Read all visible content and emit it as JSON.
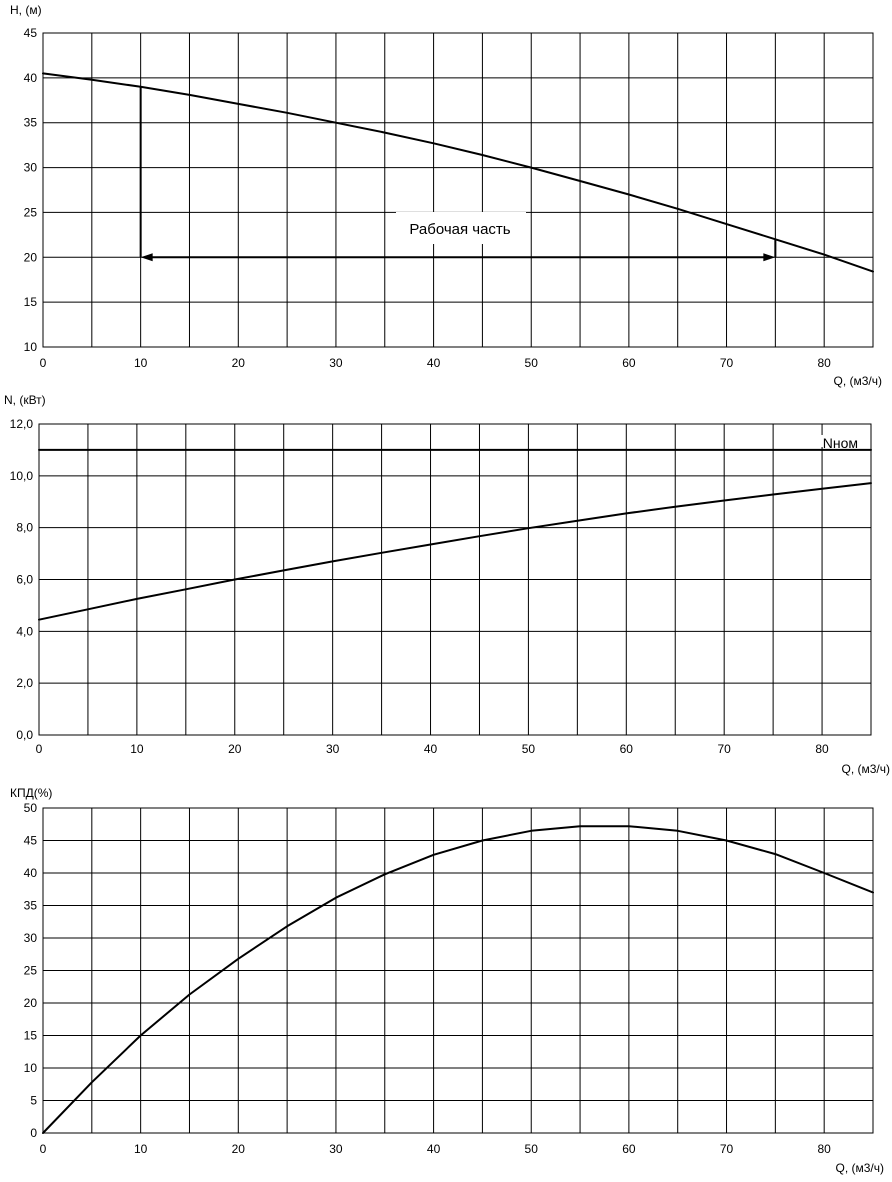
{
  "colors": {
    "background": "#ffffff",
    "grid": "#000000",
    "curve": "#000000"
  },
  "chart_data": [
    {
      "type": "line",
      "ylabel": "H, (м)",
      "xlabel": "Q, (м3/ч)",
      "xlim": [
        0,
        85
      ],
      "ylim": [
        10,
        45
      ],
      "x_ticks": [
        "0",
        "10",
        "20",
        "30",
        "40",
        "50",
        "60",
        "70",
        "80"
      ],
      "y_ticks": [
        "10",
        "15",
        "20",
        "25",
        "30",
        "35",
        "40",
        "45"
      ],
      "grid": true,
      "series": [
        {
          "x": [
            0,
            5,
            10,
            15,
            20,
            25,
            30,
            35,
            40,
            45,
            50,
            55,
            60,
            65,
            70,
            75,
            80,
            85
          ],
          "y": [
            40.5,
            39.8,
            39.0,
            38.1,
            37.1,
            36.1,
            35.0,
            33.9,
            32.7,
            31.4,
            30.0,
            28.5,
            27.0,
            25.4,
            23.7,
            22.0,
            20.3,
            18.4
          ]
        }
      ],
      "annotation": {
        "text": "Рабочая часть",
        "x_range": [
          10,
          75
        ],
        "y": 20
      }
    },
    {
      "type": "line",
      "ylabel": "N, (кВт)",
      "xlabel": "Q, (м3/ч)",
      "xlim": [
        0,
        85
      ],
      "ylim": [
        0,
        12
      ],
      "x_ticks": [
        "0",
        "10",
        "20",
        "30",
        "40",
        "50",
        "60",
        "70",
        "80"
      ],
      "y_ticks": [
        "0,0",
        "2,0",
        "4,0",
        "6,0",
        "8,0",
        "10,0",
        "12,0"
      ],
      "grid": true,
      "series": [
        {
          "x": [
            0,
            5,
            10,
            15,
            20,
            25,
            30,
            35,
            40,
            45,
            50,
            55,
            60,
            65,
            70,
            75,
            80,
            85
          ],
          "y": [
            4.45,
            4.85,
            5.25,
            5.62,
            6.0,
            6.35,
            6.7,
            7.03,
            7.35,
            7.67,
            7.98,
            8.27,
            8.55,
            8.81,
            9.05,
            9.28,
            9.5,
            9.72
          ]
        },
        {
          "name": "Nном",
          "x": [
            0,
            85
          ],
          "y": [
            11,
            11
          ]
        }
      ]
    },
    {
      "type": "line",
      "ylabel": "КПД(%)",
      "xlabel": "Q, (м3/ч)",
      "xlim": [
        0,
        85
      ],
      "ylim": [
        0,
        50
      ],
      "x_ticks": [
        "0",
        "10",
        "20",
        "30",
        "40",
        "50",
        "60",
        "70",
        "80"
      ],
      "y_ticks": [
        "0",
        "5",
        "10",
        "15",
        "20",
        "25",
        "30",
        "35",
        "40",
        "45",
        "50"
      ],
      "grid": true,
      "series": [
        {
          "x": [
            0,
            5,
            10,
            15,
            20,
            25,
            30,
            35,
            40,
            45,
            50,
            55,
            60,
            65,
            70,
            75,
            80,
            85
          ],
          "y": [
            0,
            7.8,
            15,
            21.3,
            26.8,
            31.8,
            36.2,
            39.8,
            42.8,
            45.0,
            46.5,
            47.2,
            47.2,
            46.5,
            45.0,
            42.9,
            40.0,
            37.0
          ]
        }
      ]
    }
  ]
}
